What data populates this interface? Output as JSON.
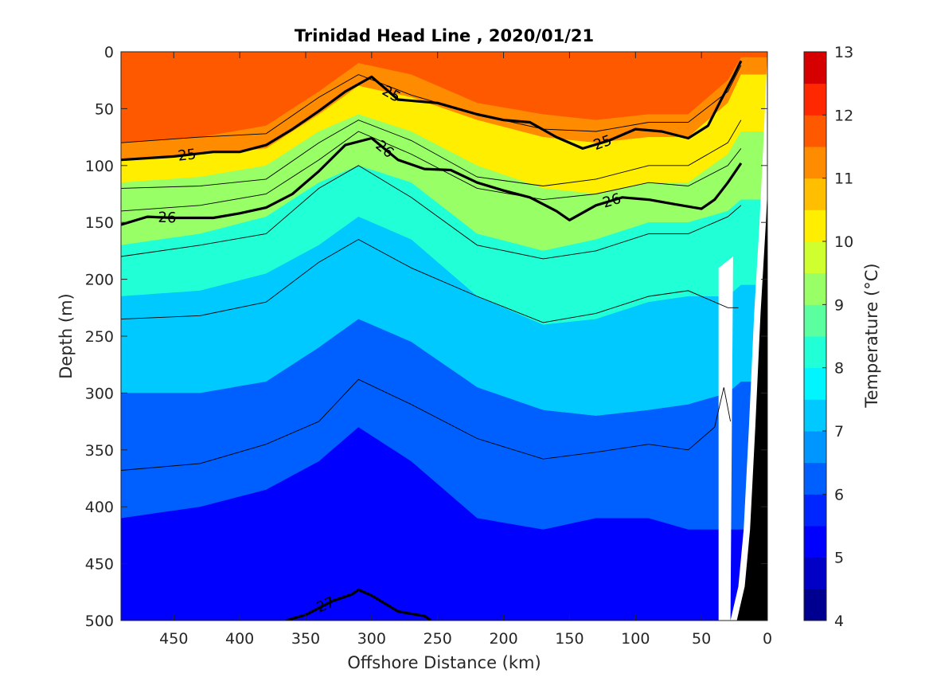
{
  "chart_data": {
    "type": "contour",
    "title": "Trinidad Head Line , 2020/01/21",
    "xlabel": "Offshore Distance (km)",
    "ylabel": "Depth (m)",
    "xlim": [
      490,
      0
    ],
    "ylim": [
      0,
      500
    ],
    "xticks": [
      450,
      400,
      350,
      300,
      250,
      200,
      150,
      100,
      50,
      0
    ],
    "yticks": [
      0,
      50,
      100,
      150,
      200,
      250,
      300,
      350,
      400,
      450,
      500
    ],
    "colorbar": {
      "label": "Temperature (°C)",
      "ticks": [
        4,
        5,
        6,
        7,
        8,
        9,
        10,
        11,
        12,
        13
      ],
      "levels": [
        4,
        4.5,
        5,
        5.5,
        6,
        6.5,
        7,
        7.5,
        8,
        8.5,
        9,
        9.5,
        10,
        10.5,
        11,
        11.5,
        12,
        12.5,
        13
      ],
      "colors": [
        "#000090",
        "#0000c6",
        "#0000ff",
        "#0026ff",
        "#0060ff",
        "#0096ff",
        "#00c9ff",
        "#00f5ff",
        "#20ffd6",
        "#5cffa0",
        "#99ff66",
        "#d0ff2f",
        "#ffee00",
        "#ffbe00",
        "#ff8b00",
        "#ff5900",
        "#ff2800",
        "#d60000",
        "#9c0000"
      ]
    },
    "fill_model": {
      "description_units": "temperature (°C) vs distance (km) and depth (m)",
      "surface_temp": 12.3,
      "bottom_temp": 5.2,
      "isotherm_depths": [
        {
          "t": 11.5,
          "x": [
            490,
            430,
            380,
            340,
            310,
            270,
            220,
            170,
            130,
            90,
            60,
            30,
            20
          ],
          "d": [
            80,
            75,
            65,
            35,
            10,
            20,
            45,
            55,
            60,
            55,
            55,
            25,
            5
          ]
        },
        {
          "t": 10.5,
          "x": [
            490,
            430,
            380,
            340,
            310,
            270,
            220,
            170,
            130,
            90,
            60,
            30,
            20
          ],
          "d": [
            95,
            90,
            85,
            55,
            30,
            40,
            60,
            75,
            80,
            75,
            75,
            45,
            20
          ]
        },
        {
          "t": 9.5,
          "x": [
            490,
            430,
            380,
            340,
            310,
            270,
            220,
            170,
            130,
            90,
            60,
            30,
            20
          ],
          "d": [
            115,
            110,
            100,
            70,
            55,
            70,
            100,
            120,
            125,
            115,
            115,
            90,
            70
          ]
        },
        {
          "t": 8.5,
          "x": [
            490,
            430,
            380,
            340,
            310,
            270,
            220,
            170,
            130,
            90,
            60,
            30,
            20
          ],
          "d": [
            170,
            160,
            145,
            115,
            100,
            115,
            160,
            175,
            165,
            150,
            150,
            140,
            130
          ]
        },
        {
          "t": 7.5,
          "x": [
            490,
            430,
            380,
            340,
            310,
            270,
            220,
            170,
            130,
            90,
            60,
            30,
            20
          ],
          "d": [
            215,
            210,
            195,
            170,
            145,
            165,
            215,
            240,
            235,
            220,
            215,
            215,
            205
          ]
        },
        {
          "t": 6.5,
          "x": [
            490,
            430,
            380,
            340,
            310,
            270,
            220,
            170,
            130,
            90,
            60,
            30,
            20
          ],
          "d": [
            300,
            300,
            290,
            260,
            235,
            255,
            295,
            315,
            320,
            315,
            310,
            300,
            290
          ]
        },
        {
          "t": 5.5,
          "x": [
            490,
            430,
            380,
            340,
            310,
            270,
            220,
            170,
            130,
            90,
            60,
            30,
            20
          ],
          "d": [
            410,
            400,
            385,
            360,
            330,
            360,
            410,
            420,
            410,
            410,
            420,
            420,
            420
          ]
        }
      ]
    },
    "density_contours": [
      {
        "label": "25",
        "x": [
          490,
          450,
          420,
          400,
          380,
          360,
          340,
          320,
          300,
          280,
          250,
          220,
          200,
          180,
          160,
          140,
          120,
          100,
          80,
          60,
          45,
          35,
          25,
          20
        ],
        "y": [
          95,
          92,
          88,
          88,
          82,
          68,
          52,
          35,
          22,
          42,
          45,
          55,
          60,
          62,
          75,
          85,
          78,
          68,
          70,
          76,
          65,
          42,
          20,
          8
        ]
      },
      {
        "label": "26",
        "x": [
          490,
          470,
          450,
          420,
          400,
          380,
          360,
          340,
          320,
          300,
          280,
          260,
          240,
          220,
          200,
          180,
          160,
          150,
          130,
          110,
          90,
          70,
          50,
          40,
          30,
          20
        ],
        "y": [
          152,
          145,
          146,
          146,
          142,
          137,
          125,
          105,
          82,
          76,
          95,
          103,
          104,
          115,
          122,
          128,
          140,
          148,
          135,
          128,
          130,
          134,
          138,
          130,
          115,
          98
        ]
      },
      {
        "label": "27",
        "x": [
          365,
          350,
          330,
          315,
          310,
          300,
          280,
          260,
          255
        ],
        "y": [
          500,
          495,
          483,
          477,
          473,
          478,
          492,
          496,
          500
        ]
      }
    ],
    "thin_contours_depths": [
      {
        "x": [
          490,
          430,
          380,
          340,
          310,
          270,
          220,
          170,
          130,
          90,
          60,
          30,
          20
        ],
        "d": [
          80,
          75,
          72,
          40,
          20,
          38,
          55,
          68,
          70,
          62,
          62,
          35,
          12
        ]
      },
      {
        "x": [
          490,
          430,
          380,
          340,
          310,
          270,
          220,
          170,
          130,
          90,
          60,
          30,
          20
        ],
        "d": [
          120,
          118,
          112,
          80,
          60,
          78,
          110,
          118,
          112,
          100,
          100,
          80,
          60
        ]
      },
      {
        "x": [
          490,
          430,
          380,
          340,
          310,
          270,
          220,
          170,
          130,
          90,
          60,
          30,
          20
        ],
        "d": [
          140,
          135,
          125,
          95,
          70,
          90,
          120,
          130,
          125,
          115,
          118,
          100,
          85
        ]
      },
      {
        "x": [
          490,
          430,
          380,
          340,
          310,
          270,
          220,
          170,
          130,
          90,
          60,
          30,
          20
        ],
        "d": [
          180,
          170,
          160,
          120,
          100,
          128,
          170,
          182,
          175,
          160,
          160,
          145,
          135
        ]
      },
      {
        "x": [
          490,
          430,
          380,
          340,
          310,
          270,
          220,
          170,
          130,
          90,
          60,
          30,
          22
        ],
        "d": [
          235,
          232,
          220,
          185,
          165,
          190,
          215,
          238,
          230,
          215,
          210,
          225,
          225
        ]
      },
      {
        "x": [
          490,
          430,
          380,
          340,
          310,
          270,
          220,
          170,
          130,
          90,
          60,
          40,
          33,
          28
        ],
        "d": [
          368,
          362,
          345,
          325,
          288,
          310,
          340,
          358,
          352,
          345,
          350,
          330,
          295,
          325
        ]
      }
    ],
    "bathymetry_mask": {
      "x": [
        28,
        22,
        18,
        14,
        10,
        6,
        3,
        0
      ],
      "bottom_depth": [
        500,
        470,
        420,
        330,
        230,
        150,
        80,
        0
      ]
    }
  }
}
